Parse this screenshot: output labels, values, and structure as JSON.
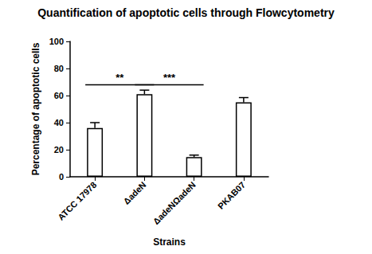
{
  "chart_data": {
    "type": "bar",
    "title": "Quantification of apoptotic cells through Flowcytometry",
    "x_label": "Strains",
    "y_label": "Percentage of apoptotic cells",
    "categories": [
      "ATCC 17978",
      "ΔadeN",
      "ΔadeNΩadeN",
      "PKAB07"
    ],
    "values": [
      36,
      61,
      14.5,
      55
    ],
    "errors": [
      4,
      3,
      1.5,
      3.5
    ],
    "color": "#ffffff",
    "ylim": [
      0,
      100
    ],
    "yticks": [
      0,
      20,
      40,
      60,
      80,
      100
    ],
    "grid": false,
    "annotations": [
      {
        "text": "**",
        "from": "ATCC 17978",
        "to": "ΔadeN",
        "y": 68
      },
      {
        "text": "***",
        "from": "ΔadeN",
        "to": "ΔadeNΩadeN",
        "y": 68
      }
    ]
  }
}
